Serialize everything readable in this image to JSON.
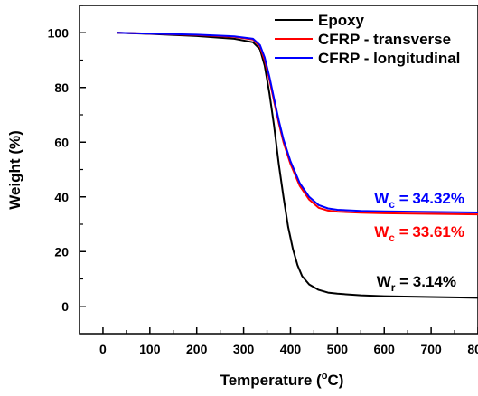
{
  "chart_data": {
    "type": "line",
    "xlabel": {
      "main": "Temperature (",
      "sup": "o",
      "post": "C)"
    },
    "ylabel": "Weight (%)",
    "xlim": [
      -50,
      800
    ],
    "ylim": [
      -10,
      110
    ],
    "x_ticks": [
      0,
      100,
      200,
      300,
      400,
      500,
      600,
      700,
      800
    ],
    "y_ticks": [
      0,
      20,
      40,
      60,
      80,
      100
    ],
    "legend_position": "top-right",
    "series": [
      {
        "name": "Epoxy",
        "color": "#000000",
        "x": [
          30,
          100,
          200,
          280,
          320,
          335,
          345,
          355,
          365,
          375,
          385,
          395,
          405,
          415,
          425,
          440,
          460,
          480,
          500,
          550,
          600,
          700,
          800
        ],
        "y": [
          100,
          99.6,
          98.8,
          97.8,
          96.5,
          94,
          88,
          78,
          66,
          52,
          40,
          29,
          21,
          15,
          11,
          8,
          6,
          5,
          4.6,
          4,
          3.7,
          3.4,
          3.1
        ]
      },
      {
        "name": "CFRP - transverse",
        "color": "#ff0000",
        "x": [
          30,
          100,
          200,
          280,
          320,
          335,
          345,
          355,
          365,
          375,
          385,
          400,
          420,
          440,
          460,
          480,
          500,
          550,
          600,
          700,
          800
        ],
        "y": [
          100,
          99.7,
          99.2,
          98.5,
          97.5,
          95,
          90,
          83,
          75,
          67,
          60,
          52,
          44,
          39,
          36,
          35,
          34.6,
          34.2,
          34,
          33.8,
          33.6
        ]
      },
      {
        "name": "CFRP - longitudinal",
        "color": "#0000ff",
        "x": [
          30,
          100,
          200,
          280,
          320,
          335,
          345,
          355,
          365,
          375,
          385,
          400,
          420,
          440,
          460,
          480,
          500,
          550,
          600,
          700,
          800
        ],
        "y": [
          100,
          99.7,
          99.3,
          98.7,
          97.8,
          95.5,
          91,
          84,
          76,
          68,
          61,
          53,
          45,
          40,
          37,
          35.8,
          35.3,
          34.9,
          34.7,
          34.5,
          34.3
        ]
      }
    ],
    "annotations": [
      {
        "main": "W",
        "sub": "c",
        "rest": " = 34.32%",
        "color": "#0000ff"
      },
      {
        "main": "W",
        "sub": "c",
        "rest": " = 33.61%",
        "color": "#ff0000"
      },
      {
        "main": "W",
        "sub": "r",
        "rest": " = 3.14%",
        "color": "#000000"
      }
    ]
  }
}
